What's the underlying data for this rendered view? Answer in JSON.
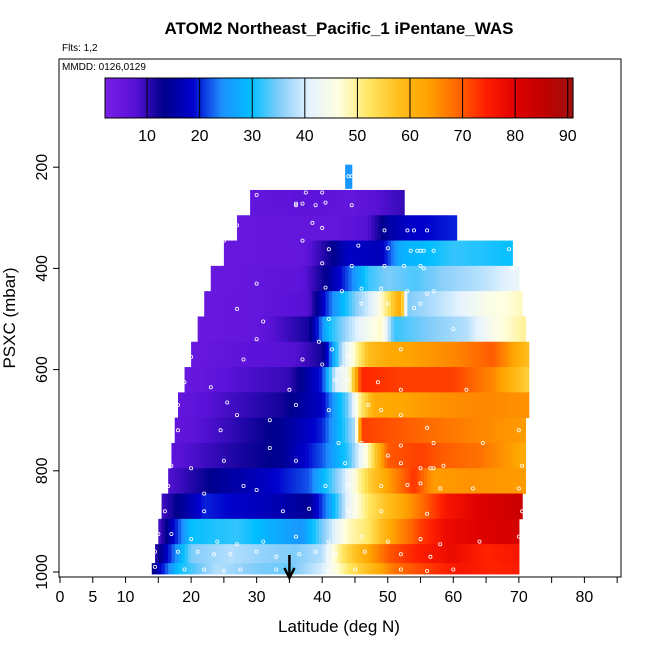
{
  "chart_data": {
    "type": "heatmap",
    "title": "ATOM2 Northeast_Pacific_1 iPentane_WAS",
    "flights_label": "Flts: 1,2",
    "dates_label": "MMDD: 0126,0129",
    "xlabel": "Latitude (deg N)",
    "ylabel": "PSXC (mbar)",
    "xlim": [
      0,
      85
    ],
    "ylim": [
      1000,
      0
    ],
    "x_ticks": [
      0,
      5,
      10,
      20,
      30,
      40,
      50,
      60,
      70,
      80
    ],
    "y_ticks": [
      200,
      400,
      600,
      800,
      1000
    ],
    "colorbar": {
      "range": [
        2,
        91
      ],
      "ticks": [
        10,
        20,
        30,
        40,
        50,
        60,
        70,
        80,
        90
      ],
      "palette": [
        "#7a1fe6",
        "#5a12d8",
        "#00008b",
        "#0000cd",
        "#1e90ff",
        "#00bfff",
        "#87cefa",
        "#e6f3ff",
        "#ffffe0",
        "#ffe866",
        "#ffc020",
        "#ffa500",
        "#ff6a00",
        "#ff2000",
        "#e00000",
        "#c00000",
        "#a01010"
      ]
    },
    "marker_latitude": 35,
    "rows": [
      {
        "p": 220,
        "lat_min": 43.5,
        "lat_max": 44.5,
        "segments": [
          [
            43.5,
            25
          ],
          [
            44.5,
            25
          ]
        ]
      },
      {
        "p": 270,
        "lat_min": 29,
        "lat_max": 52.5,
        "segments": [
          [
            29,
            6
          ],
          [
            36,
            7
          ],
          [
            40,
            7
          ],
          [
            44,
            6
          ],
          [
            47,
            7
          ],
          [
            52.5,
            10
          ]
        ]
      },
      {
        "p": 320,
        "lat_min": 27,
        "lat_max": 60.5,
        "segments": [
          [
            27,
            5
          ],
          [
            35,
            6
          ],
          [
            42,
            6
          ],
          [
            47,
            8
          ],
          [
            50,
            15
          ],
          [
            53,
            18
          ],
          [
            57,
            19
          ],
          [
            60.5,
            20
          ]
        ]
      },
      {
        "p": 370,
        "lat_min": 25,
        "lat_max": 69,
        "segments": [
          [
            25,
            5
          ],
          [
            37,
            6
          ],
          [
            41,
            12
          ],
          [
            44,
            18
          ],
          [
            49,
            17
          ],
          [
            52,
            28
          ],
          [
            55,
            29
          ],
          [
            60,
            32
          ],
          [
            65,
            31
          ],
          [
            69,
            30
          ]
        ]
      },
      {
        "p": 420,
        "lat_min": 23,
        "lat_max": 70,
        "segments": [
          [
            23,
            5
          ],
          [
            30,
            6
          ],
          [
            37,
            7
          ],
          [
            40,
            12
          ],
          [
            44,
            22
          ],
          [
            47,
            32
          ],
          [
            50,
            35
          ],
          [
            54,
            33
          ],
          [
            59,
            36
          ],
          [
            64,
            38
          ],
          [
            70,
            42
          ]
        ]
      },
      {
        "p": 470,
        "lat_min": 22,
        "lat_max": 70.5,
        "segments": [
          [
            22,
            5
          ],
          [
            30,
            6
          ],
          [
            38,
            8
          ],
          [
            41,
            22
          ],
          [
            45,
            35
          ],
          [
            48,
            42
          ],
          [
            50,
            52
          ],
          [
            52,
            63
          ],
          [
            53,
            35
          ],
          [
            60,
            40
          ],
          [
            65,
            45
          ],
          [
            70.5,
            48
          ]
        ]
      },
      {
        "p": 520,
        "lat_min": 21,
        "lat_max": 71,
        "segments": [
          [
            21,
            5
          ],
          [
            30,
            6
          ],
          [
            38,
            12
          ],
          [
            41,
            30
          ],
          [
            45,
            40
          ],
          [
            49,
            48
          ],
          [
            51,
            32
          ],
          [
            56,
            35
          ],
          [
            62,
            38
          ],
          [
            66,
            45
          ],
          [
            71,
            50
          ]
        ]
      },
      {
        "p": 570,
        "lat_min": 20,
        "lat_max": 71.5,
        "segments": [
          [
            20,
            5
          ],
          [
            28,
            7
          ],
          [
            36,
            8
          ],
          [
            40,
            12
          ],
          [
            43,
            38
          ],
          [
            47,
            58
          ],
          [
            50,
            62
          ],
          [
            55,
            64
          ],
          [
            60,
            66
          ],
          [
            66,
            70
          ],
          [
            71.5,
            58
          ]
        ]
      },
      {
        "p": 620,
        "lat_min": 19,
        "lat_max": 71.5,
        "segments": [
          [
            19,
            5
          ],
          [
            27,
            8
          ],
          [
            35,
            10
          ],
          [
            40,
            20
          ],
          [
            42,
            40
          ],
          [
            44,
            45
          ],
          [
            46,
            74
          ],
          [
            52,
            72
          ],
          [
            60,
            72
          ],
          [
            66,
            66
          ],
          [
            71.5,
            55
          ]
        ]
      },
      {
        "p": 670,
        "lat_min": 18,
        "lat_max": 71.5,
        "segments": [
          [
            18,
            6
          ],
          [
            26,
            9
          ],
          [
            34,
            12
          ],
          [
            40,
            18
          ],
          [
            44,
            35
          ],
          [
            46,
            52
          ],
          [
            48,
            62
          ],
          [
            52,
            63
          ],
          [
            58,
            65
          ],
          [
            64,
            66
          ],
          [
            71.5,
            65
          ]
        ]
      },
      {
        "p": 720,
        "lat_min": 17.5,
        "lat_max": 71,
        "segments": [
          [
            17.5,
            6
          ],
          [
            26,
            10
          ],
          [
            34,
            14
          ],
          [
            40,
            20
          ],
          [
            43,
            30
          ],
          [
            45,
            38
          ],
          [
            46,
            72
          ],
          [
            52,
            70
          ],
          [
            58,
            68
          ],
          [
            64,
            66
          ],
          [
            71,
            64
          ]
        ]
      },
      {
        "p": 770,
        "lat_min": 17,
        "lat_max": 71,
        "segments": [
          [
            17,
            7
          ],
          [
            26,
            11
          ],
          [
            34,
            14
          ],
          [
            40,
            22
          ],
          [
            44,
            32
          ],
          [
            47,
            48
          ],
          [
            50,
            70
          ],
          [
            55,
            72
          ],
          [
            58,
            70
          ],
          [
            64,
            68
          ],
          [
            71,
            62
          ]
        ]
      },
      {
        "p": 820,
        "lat_min": 16.5,
        "lat_max": 71,
        "segments": [
          [
            16.5,
            8
          ],
          [
            24,
            14
          ],
          [
            32,
            18
          ],
          [
            38,
            22
          ],
          [
            43,
            38
          ],
          [
            47,
            55
          ],
          [
            51,
            66
          ],
          [
            54,
            73
          ],
          [
            57,
            64
          ],
          [
            63,
            65
          ],
          [
            71,
            64
          ]
        ]
      },
      {
        "p": 870,
        "lat_min": 15.5,
        "lat_max": 70.5,
        "segments": [
          [
            15.5,
            9
          ],
          [
            22,
            20
          ],
          [
            28,
            18
          ],
          [
            34,
            16
          ],
          [
            38,
            14
          ],
          [
            41,
            25
          ],
          [
            44,
            42
          ],
          [
            47,
            52
          ],
          [
            51,
            60
          ],
          [
            55,
            68
          ],
          [
            59,
            76
          ],
          [
            64,
            80
          ],
          [
            70.5,
            84
          ]
        ]
      },
      {
        "p": 920,
        "lat_min": 15,
        "lat_max": 70,
        "segments": [
          [
            15,
            8
          ],
          [
            20,
            30
          ],
          [
            27,
            32
          ],
          [
            32,
            28
          ],
          [
            37,
            25
          ],
          [
            41,
            38
          ],
          [
            44,
            48
          ],
          [
            47,
            52
          ],
          [
            51,
            64
          ],
          [
            55,
            72
          ],
          [
            59,
            78
          ],
          [
            64,
            80
          ],
          [
            70,
            82
          ]
        ]
      },
      {
        "p": 970,
        "lat_min": 14.5,
        "lat_max": 70,
        "segments": [
          [
            14.5,
            10
          ],
          [
            20,
            35
          ],
          [
            26,
            38
          ],
          [
            31,
            36
          ],
          [
            36,
            35
          ],
          [
            40,
            38
          ],
          [
            43,
            52
          ],
          [
            46,
            60
          ],
          [
            50,
            70
          ],
          [
            55,
            75
          ],
          [
            60,
            78
          ],
          [
            65,
            74
          ],
          [
            70,
            76
          ]
        ]
      },
      {
        "p": 995,
        "lat_min": 14,
        "lat_max": 70,
        "segments": [
          [
            14,
            12
          ],
          [
            18,
            30
          ],
          [
            24,
            38
          ],
          [
            30,
            35
          ],
          [
            35,
            34
          ],
          [
            40,
            40
          ],
          [
            44,
            52
          ],
          [
            47,
            58
          ],
          [
            51,
            68
          ],
          [
            56,
            72
          ],
          [
            61,
            76
          ],
          [
            66,
            74
          ],
          [
            70,
            75
          ]
        ]
      }
    ],
    "samples": [
      [
        44,
        218
      ],
      [
        44.5,
        218
      ],
      [
        45,
        218
      ],
      [
        37.5,
        250
      ],
      [
        40,
        250
      ],
      [
        30,
        255
      ],
      [
        36,
        272
      ],
      [
        37,
        272
      ],
      [
        39,
        275
      ],
      [
        40.5,
        270
      ],
      [
        44.5,
        275
      ],
      [
        28,
        285
      ],
      [
        36,
        275
      ],
      [
        27,
        315
      ],
      [
        38.5,
        310
      ],
      [
        40,
        320
      ],
      [
        49.5,
        325
      ],
      [
        53,
        325
      ],
      [
        54,
        325
      ],
      [
        56,
        325
      ],
      [
        25,
        345
      ],
      [
        37,
        345
      ],
      [
        41,
        362
      ],
      [
        45.5,
        355
      ],
      [
        50,
        360
      ],
      [
        53.5,
        365
      ],
      [
        54.5,
        365
      ],
      [
        55,
        365
      ],
      [
        55.5,
        365
      ],
      [
        57,
        365
      ],
      [
        68.5,
        362
      ],
      [
        23.5,
        390
      ],
      [
        40,
        390
      ],
      [
        44.5,
        395
      ],
      [
        49.5,
        395
      ],
      [
        52.5,
        395
      ],
      [
        55,
        395
      ],
      [
        55.5,
        400
      ],
      [
        69,
        400
      ],
      [
        22,
        430
      ],
      [
        30,
        430
      ],
      [
        40.5,
        438
      ],
      [
        43,
        445
      ],
      [
        46,
        440
      ],
      [
        49,
        440
      ],
      [
        53,
        445
      ],
      [
        56,
        450
      ],
      [
        57,
        445
      ],
      [
        21,
        470
      ],
      [
        27,
        480
      ],
      [
        31,
        505
      ],
      [
        41,
        500
      ],
      [
        46,
        470
      ],
      [
        50,
        470
      ],
      [
        54,
        478
      ],
      [
        55,
        470
      ],
      [
        20.5,
        530
      ],
      [
        30,
        540
      ],
      [
        39.5,
        545
      ],
      [
        41.5,
        560
      ],
      [
        44,
        575
      ],
      [
        52,
        560
      ],
      [
        60,
        520
      ],
      [
        20,
        575
      ],
      [
        28,
        580
      ],
      [
        37,
        580
      ],
      [
        40,
        590
      ],
      [
        43,
        595
      ],
      [
        19,
        625
      ],
      [
        23,
        635
      ],
      [
        25.5,
        665
      ],
      [
        35,
        640
      ],
      [
        42,
        620
      ],
      [
        44,
        620
      ],
      [
        48.5,
        625
      ],
      [
        52,
        640
      ],
      [
        62,
        640
      ],
      [
        18,
        670
      ],
      [
        27,
        690
      ],
      [
        32,
        700
      ],
      [
        36,
        670
      ],
      [
        41,
        680
      ],
      [
        47,
        670
      ],
      [
        49,
        680
      ],
      [
        52,
        690
      ],
      [
        56,
        715
      ],
      [
        18,
        720
      ],
      [
        24.5,
        720
      ],
      [
        32,
        755
      ],
      [
        42.5,
        745
      ],
      [
        46,
        745
      ],
      [
        52,
        750
      ],
      [
        57,
        745
      ],
      [
        64.5,
        745
      ],
      [
        70,
        720
      ],
      [
        17,
        790
      ],
      [
        20,
        795
      ],
      [
        25,
        780
      ],
      [
        36,
        780
      ],
      [
        43.5,
        785
      ],
      [
        50,
        770
      ],
      [
        52,
        785
      ],
      [
        55,
        795
      ],
      [
        56.5,
        795
      ],
      [
        57,
        795
      ],
      [
        58.5,
        790
      ],
      [
        70.5,
        790
      ],
      [
        16.5,
        830
      ],
      [
        22,
        845
      ],
      [
        28,
        830
      ],
      [
        30,
        838
      ],
      [
        40.5,
        830
      ],
      [
        44,
        828
      ],
      [
        49,
        830
      ],
      [
        53,
        828
      ],
      [
        55,
        825
      ],
      [
        58,
        835
      ],
      [
        63,
        835
      ],
      [
        70,
        835
      ],
      [
        16,
        880
      ],
      [
        22,
        880
      ],
      [
        34,
        880
      ],
      [
        38,
        875
      ],
      [
        44,
        880
      ],
      [
        49,
        880
      ],
      [
        56,
        885
      ],
      [
        70.5,
        880
      ],
      [
        15,
        925
      ],
      [
        17,
        925
      ],
      [
        20,
        935
      ],
      [
        24,
        940
      ],
      [
        27,
        945
      ],
      [
        31,
        940
      ],
      [
        36,
        930
      ],
      [
        41,
        940
      ],
      [
        46,
        930
      ],
      [
        50,
        940
      ],
      [
        55,
        935
      ],
      [
        58,
        945
      ],
      [
        64,
        940
      ],
      [
        70,
        930
      ],
      [
        14.5,
        960
      ],
      [
        18,
        960
      ],
      [
        21,
        960
      ],
      [
        23.5,
        965
      ],
      [
        26,
        965
      ],
      [
        30,
        960
      ],
      [
        33,
        970
      ],
      [
        36.5,
        965
      ],
      [
        39,
        960
      ],
      [
        42,
        965
      ],
      [
        46.5,
        960
      ],
      [
        52,
        965
      ],
      [
        56.5,
        970
      ],
      [
        14.5,
        990
      ],
      [
        19,
        995
      ],
      [
        22,
        995
      ],
      [
        25,
        998
      ],
      [
        27.5,
        995
      ],
      [
        33,
        995
      ],
      [
        41,
        998
      ],
      [
        45,
        995
      ],
      [
        52,
        995
      ],
      [
        56,
        998
      ],
      [
        60,
        995
      ]
    ]
  }
}
